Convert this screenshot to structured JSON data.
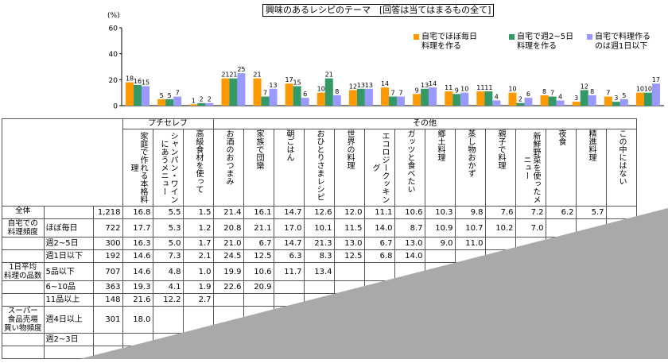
{
  "title": "興味のあるレシピのテーマ　[回答は当てはまるもの全て]",
  "chart_data": {
    "type": "bar",
    "ylabel": "(%)",
    "ylim": [
      0,
      60
    ],
    "yticks": [
      0,
      20,
      40,
      60
    ],
    "series": [
      {
        "name": "自宅でほぼ毎日\n料理を作る",
        "color": "#ff9900",
        "values": [
          18,
          5,
          1,
          21,
          21,
          17,
          10,
          12,
          14,
          9,
          11,
          11,
          10,
          8,
          3,
          7,
          10
        ]
      },
      {
        "name": "自宅で週2~5日\n料理を作る",
        "color": "#339966",
        "values": [
          16,
          5,
          2,
          21,
          7,
          15,
          21,
          13,
          7,
          13,
          9,
          11,
          2,
          7,
          12,
          3,
          10
        ]
      },
      {
        "name": "自宅で料理作る\nのは週1日以下",
        "color": "#9999ff",
        "values": [
          15,
          7,
          2,
          25,
          13,
          6,
          8,
          13,
          7,
          14,
          10,
          4,
          6,
          4,
          8,
          5,
          17
        ]
      }
    ]
  },
  "table": {
    "group_headers": {
      "petit": "プチセレブ",
      "other": "その他"
    },
    "categories": [
      "家庭で作れる本格料理",
      "シャンパン・ワインにあうメニュー",
      "高級食材を使って",
      "お酒のおつまみ",
      "家族で団欒",
      "朝ごはん",
      "おひとりさまレシピ",
      "世界の料理",
      "エコロジークッキング",
      "ガッツと食べたい",
      "郷土料理",
      "蒸し物おかず",
      "親子で料理",
      "新鮮野菜を使ったメニュー",
      "夜食",
      "精進料理",
      "この中にはない"
    ],
    "rows": [
      {
        "group": "全体",
        "sub": "",
        "n": "1,218",
        "v": [
          "16.8",
          "5.5",
          "1.5",
          "21.4",
          "16.1",
          "14.7",
          "12.6",
          "12.0",
          "11.1",
          "10.6",
          "10.3",
          "9.8",
          "7.6",
          "7.2",
          "6.2",
          "5.7",
          ""
        ]
      },
      {
        "group": "自宅での\n料理頻度",
        "sub": "ほぼ毎日",
        "n": "722",
        "v": [
          "17.7",
          "5.3",
          "1.2",
          "20.8",
          "21.1",
          "17.0",
          "10.1",
          "11.5",
          "14.0",
          "8.7",
          "10.9",
          "10.7",
          "10.2",
          "7.0",
          "",
          "",
          ""
        ]
      },
      {
        "group": "",
        "sub": "週2~5日",
        "n": "300",
        "v": [
          "16.3",
          "5.0",
          "1.7",
          "21.0",
          "6.7",
          "14.7",
          "21.3",
          "13.0",
          "6.7",
          "13.0",
          "9.0",
          "11.0",
          "",
          "",
          "",
          "",
          ""
        ]
      },
      {
        "group": "",
        "sub": "週1日以下",
        "n": "192",
        "v": [
          "14.6",
          "7.3",
          "2.1",
          "24.5",
          "12.5",
          "6.3",
          "8.3",
          "12.5",
          "6.8",
          "14.0",
          "",
          "",
          "",
          "",
          "",
          "",
          ""
        ]
      },
      {
        "group": "1日平均\n料理の品数",
        "sub": "5品以下",
        "n": "707",
        "v": [
          "14.6",
          "4.8",
          "1.0",
          "19.9",
          "10.6",
          "11.7",
          "13.4",
          "",
          "",
          "",
          "",
          "",
          "",
          "",
          "",
          "",
          ""
        ]
      },
      {
        "group": "",
        "sub": "6~10品",
        "n": "363",
        "v": [
          "19.3",
          "4.1",
          "1.9",
          "22.6",
          "20.9",
          "",
          "",
          "",
          "",
          "",
          "",
          "",
          "",
          "",
          "",
          "",
          ""
        ]
      },
      {
        "group": "",
        "sub": "11品以上",
        "n": "148",
        "v": [
          "21.6",
          "12.2",
          "2.7",
          "",
          "",
          "",
          "",
          "",
          "",
          "",
          "",
          "",
          "",
          "",
          "",
          "",
          ""
        ]
      },
      {
        "group": "スーパー\n食品売場\n買い物頻度",
        "sub": "週4日以上",
        "n": "301",
        "v": [
          "18.0",
          "",
          "",
          "",
          "",
          "",
          "",
          "",
          "",
          "",
          "",
          "",
          "",
          "",
          "",
          "",
          ""
        ]
      },
      {
        "group": "",
        "sub": "週2~3日",
        "n": "",
        "v": [
          "",
          "",
          "",
          "",
          "",
          "",
          "",
          "",
          "",
          "",
          "",
          "",
          "",
          "",
          "",
          "",
          ""
        ]
      },
      {
        "group": "",
        "sub": "",
        "n": "",
        "v": [
          "",
          "",
          "",
          "",
          "",
          "",
          "",
          "",
          "",
          "",
          "",
          "",
          "",
          "",
          "",
          "",
          ""
        ]
      }
    ]
  }
}
